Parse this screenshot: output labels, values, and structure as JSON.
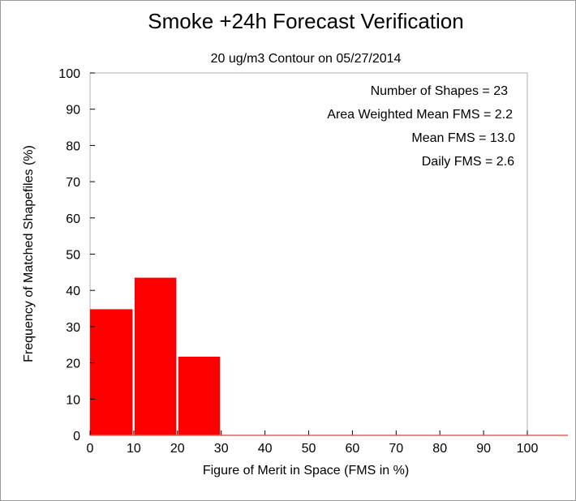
{
  "chart_data": {
    "type": "bar",
    "title": "Smoke +24h Forecast Verification",
    "subtitle": "20 ug/m3 Contour on 05/27/2014",
    "xlabel": "Figure of Merit in Space (FMS in %)",
    "ylabel": "Frequency of Matched Shapefiles (%)",
    "xlim": [
      0,
      100
    ],
    "ylim": [
      0,
      100
    ],
    "x_ticks": [
      "0",
      "10",
      "20",
      "30",
      "40",
      "50",
      "60",
      "70",
      "80",
      "90",
      "100"
    ],
    "y_ticks": [
      "0",
      "10",
      "20",
      "30",
      "40",
      "50",
      "60",
      "70",
      "80",
      "90",
      "100"
    ],
    "bins": [
      {
        "start": 0,
        "end": 10,
        "value": 34.8
      },
      {
        "start": 10,
        "end": 20,
        "value": 43.5
      },
      {
        "start": 20,
        "end": 30,
        "value": 21.7
      },
      {
        "start": 30,
        "end": 40,
        "value": 0
      },
      {
        "start": 40,
        "end": 50,
        "value": 0
      },
      {
        "start": 50,
        "end": 60,
        "value": 0
      },
      {
        "start": 60,
        "end": 70,
        "value": 0
      },
      {
        "start": 70,
        "end": 80,
        "value": 0
      },
      {
        "start": 80,
        "end": 90,
        "value": 0
      },
      {
        "start": 90,
        "end": 100,
        "value": 0
      }
    ],
    "bar_color": "#ff0000",
    "annotations": [
      "Number of Shapes = 23",
      "Area Weighted Mean FMS = 2.2",
      "Mean FMS = 13.0",
      "Daily FMS = 2.6"
    ],
    "grid": false,
    "legend": "none"
  }
}
